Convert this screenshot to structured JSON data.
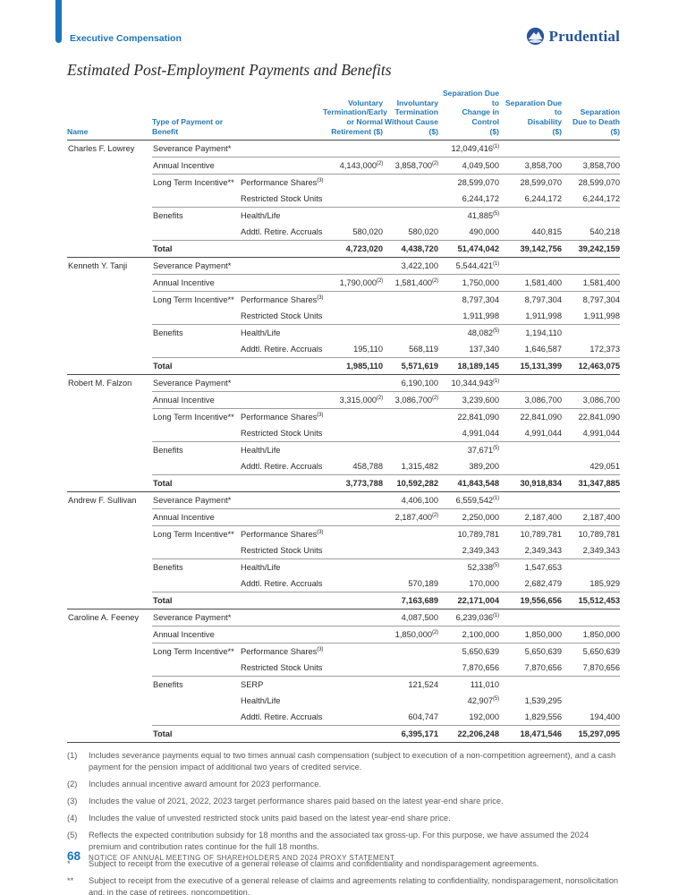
{
  "page": {
    "eyebrow": "Executive Compensation",
    "brand": "Prudential",
    "title": "Estimated Post-Employment Payments and Benefits",
    "footer": {
      "page_number": "68",
      "text": "NOTICE OF ANNUAL MEETING OF SHAREHOLDERS AND 2024 PROXY STATEMENT"
    }
  },
  "colors": {
    "accent_blue": "#1b75bc",
    "header_blue": "#2579b8",
    "brand_navy": "#27549d",
    "rule_light": "#9e9e9e",
    "rule_dark": "#4a4a4a",
    "text_dark": "#2b2b2b",
    "text_gray": "#58595b"
  },
  "icons": [
    {
      "name": "prudential-rock-logo",
      "glyph": "circle-with-rock"
    }
  ],
  "table": {
    "headers": [
      {
        "label": "Name",
        "align": "left"
      },
      {
        "label": "Type of Payment or Benefit",
        "align": "left"
      },
      {
        "label": "",
        "align": "left"
      },
      {
        "label": "Voluntary\nTermination/Early\nor Normal\nRetirement ($)",
        "align": "right"
      },
      {
        "label": "Involuntary\nTermination\nWithout Cause\n($)",
        "align": "right"
      },
      {
        "label": "Separation Due to\nChange in\nControl\n($)",
        "align": "right"
      },
      {
        "label": "Separation Due to\nDisability\n($)",
        "align": "right"
      },
      {
        "label": "Separation\nDue to Death\n($)",
        "align": "right"
      }
    ],
    "blocks": [
      {
        "name": "Charles F. Lowrey",
        "rows": [
          {
            "type": "Severance Payment*",
            "sub": "",
            "values": [
              "",
              "",
              "12,049,416^(1)",
              "",
              ""
            ],
            "rule": false,
            "total": false
          },
          {
            "type": "Annual Incentive",
            "sub": "",
            "values": [
              "4,143,000^(2)",
              "3,858,700^(2)",
              "4,049,500",
              "3,858,700",
              "3,858,700"
            ],
            "rule": true,
            "total": false
          },
          {
            "type": "Long Term Incentive**",
            "sub": "Performance Shares^(3)",
            "values": [
              "",
              "",
              "28,599,070",
              "28,599,070",
              "28,599,070"
            ],
            "rule": true,
            "total": false
          },
          {
            "type": "",
            "sub": "Restricted Stock Units^(4)",
            "values": [
              "",
              "",
              "6,244,172",
              "6,244,172",
              "6,244,172"
            ],
            "rule": false,
            "total": false
          },
          {
            "type": "Benefits",
            "sub": "Health/Life",
            "values": [
              "",
              "",
              "41,885^(5)",
              "",
              ""
            ],
            "rule": true,
            "total": false
          },
          {
            "type": "",
            "sub": "Addtl. Retire. Accruals",
            "values": [
              "580,020",
              "580,020",
              "490,000",
              "440,815",
              "540,218"
            ],
            "rule": false,
            "total": false
          },
          {
            "type": "Total",
            "sub": "",
            "values": [
              "4,723,020",
              "4,438,720",
              "51,474,042",
              "39,142,756",
              "39,242,159"
            ],
            "rule": true,
            "total": true
          }
        ]
      },
      {
        "name": "Kenneth Y. Tanji",
        "rows": [
          {
            "type": "Severance Payment*",
            "sub": "",
            "values": [
              "",
              "3,422,100",
              "5,544,421^(1)",
              "",
              ""
            ],
            "rule": false,
            "total": false
          },
          {
            "type": "Annual Incentive",
            "sub": "",
            "values": [
              "1,790,000^(2)",
              "1,581,400^(2)",
              "1,750,000",
              "1,581,400",
              "1,581,400"
            ],
            "rule": true,
            "total": false
          },
          {
            "type": "Long Term Incentive**",
            "sub": "Performance Shares^(3)",
            "values": [
              "",
              "",
              "8,797,304",
              "8,797,304",
              "8,797,304"
            ],
            "rule": true,
            "total": false
          },
          {
            "type": "",
            "sub": "Restricted Stock Units^(4)",
            "values": [
              "",
              "",
              "1,911,998",
              "1,911,998",
              "1,911,998"
            ],
            "rule": false,
            "total": false
          },
          {
            "type": "Benefits",
            "sub": "Health/Life",
            "values": [
              "",
              "",
              "48,082^(5)",
              "1,194,110",
              ""
            ],
            "rule": true,
            "total": false
          },
          {
            "type": "",
            "sub": "Addtl. Retire. Accruals",
            "values": [
              "195,110",
              "568,119",
              "137,340",
              "1,646,587",
              "172,373"
            ],
            "rule": false,
            "total": false
          },
          {
            "type": "Total",
            "sub": "",
            "values": [
              "1,985,110",
              "5,571,619",
              "18,189,145",
              "15,131,399",
              "12,463,075"
            ],
            "rule": true,
            "total": true
          }
        ]
      },
      {
        "name": "Robert M. Falzon",
        "rows": [
          {
            "type": "Severance Payment*",
            "sub": "",
            "values": [
              "",
              "6,190,100",
              "10,344,943^(1)",
              "",
              ""
            ],
            "rule": false,
            "total": false
          },
          {
            "type": "Annual Incentive",
            "sub": "",
            "values": [
              "3,315,000^(2)",
              "3,086,700^(2)",
              "3,239,600",
              "3,086,700",
              "3,086,700"
            ],
            "rule": true,
            "total": false
          },
          {
            "type": "Long Term Incentive**",
            "sub": "Performance Shares^(3)",
            "values": [
              "",
              "",
              "22,841,090",
              "22,841,090",
              "22,841,090"
            ],
            "rule": true,
            "total": false
          },
          {
            "type": "",
            "sub": "Restricted Stock Units^(4)",
            "values": [
              "",
              "",
              "4,991,044",
              "4,991,044",
              "4,991,044"
            ],
            "rule": false,
            "total": false
          },
          {
            "type": "Benefits",
            "sub": "Health/Life",
            "values": [
              "",
              "",
              "37,671^(5)",
              "",
              ""
            ],
            "rule": true,
            "total": false
          },
          {
            "type": "",
            "sub": "Addtl. Retire. Accruals",
            "values": [
              "458,788",
              "1,315,482",
              "389,200",
              "",
              "429,051"
            ],
            "rule": false,
            "total": false
          },
          {
            "type": "Total",
            "sub": "",
            "values": [
              "3,773,788",
              "10,592,282",
              "41,843,548",
              "30,918,834",
              "31,347,885"
            ],
            "rule": true,
            "total": true
          }
        ]
      },
      {
        "name": "Andrew F. Sullivan",
        "rows": [
          {
            "type": "Severance Payment*",
            "sub": "",
            "values": [
              "",
              "4,406,100",
              "6,559,542^(1)",
              "",
              ""
            ],
            "rule": false,
            "total": false
          },
          {
            "type": "Annual Incentive",
            "sub": "",
            "values": [
              "",
              "2,187,400^(2)",
              "2,250,000",
              "2,187,400",
              "2,187,400"
            ],
            "rule": true,
            "total": false
          },
          {
            "type": "Long Term Incentive**",
            "sub": "Performance Shares^(3)",
            "values": [
              "",
              "",
              "10,789,781",
              "10,789,781",
              "10,789,781"
            ],
            "rule": true,
            "total": false
          },
          {
            "type": "",
            "sub": "Restricted Stock Units^(4)",
            "values": [
              "",
              "",
              "2,349,343",
              "2,349,343",
              "2,349,343"
            ],
            "rule": false,
            "total": false
          },
          {
            "type": "Benefits",
            "sub": "Health/Life",
            "values": [
              "",
              "",
              "52,338^(5)",
              "1,547,653",
              ""
            ],
            "rule": true,
            "total": false
          },
          {
            "type": "",
            "sub": "Addtl. Retire. Accruals",
            "values": [
              "",
              "570,189",
              "170,000",
              "2,682,479",
              "185,929"
            ],
            "rule": false,
            "total": false
          },
          {
            "type": "Total",
            "sub": "",
            "values": [
              "",
              "7,163,689",
              "22,171,004",
              "19,556,656",
              "15,512,453"
            ],
            "rule": true,
            "total": true
          }
        ]
      },
      {
        "name": "Caroline A. Feeney",
        "rows": [
          {
            "type": "Severance Payment*",
            "sub": "",
            "values": [
              "",
              "4,087,500",
              "6,239,036^(1)",
              "",
              ""
            ],
            "rule": false,
            "total": false
          },
          {
            "type": "Annual Incentive",
            "sub": "",
            "values": [
              "",
              "1,850,000^(2)",
              "2,100,000",
              "1,850,000",
              "1,850,000"
            ],
            "rule": true,
            "total": false
          },
          {
            "type": "Long Term Incentive**",
            "sub": "Performance Shares^(3)",
            "values": [
              "",
              "",
              "5,650,639",
              "5,650,639",
              "5,650,639"
            ],
            "rule": true,
            "total": false
          },
          {
            "type": "",
            "sub": "Restricted Stock Units^(4)",
            "values": [
              "",
              "",
              "7,870,656",
              "7,870,656",
              "7,870,656"
            ],
            "rule": false,
            "total": false
          },
          {
            "type": "Benefits",
            "sub": "SERP",
            "values": [
              "",
              "121,524",
              "111,010",
              "",
              ""
            ],
            "rule": true,
            "total": false
          },
          {
            "type": "",
            "sub": "Health/Life",
            "values": [
              "",
              "",
              "42,907^(5)",
              "1,539,295",
              ""
            ],
            "rule": false,
            "total": false
          },
          {
            "type": "",
            "sub": "Addtl. Retire. Accruals",
            "values": [
              "",
              "604,747",
              "192,000",
              "1,829,556",
              "194,400"
            ],
            "rule": false,
            "total": false
          },
          {
            "type": "Total",
            "sub": "",
            "values": [
              "",
              "6,395,171",
              "22,206,248",
              "18,471,546",
              "15,297,095"
            ],
            "rule": true,
            "total": true
          }
        ]
      }
    ]
  },
  "footnotes": [
    {
      "marker": "(1)",
      "text": "Includes severance payments equal to two times annual cash compensation (subject to execution of a non-competition agreement), and a cash payment for the pension impact of additional two years of credited service."
    },
    {
      "marker": "(2)",
      "text": "Includes annual incentive award amount for 2023 performance."
    },
    {
      "marker": "(3)",
      "text": "Includes the value of 2021, 2022, 2023 target performance shares paid based on the latest year-end share price."
    },
    {
      "marker": "(4)",
      "text": "Includes the value of unvested restricted stock units paid based on the latest year-end share price."
    },
    {
      "marker": "(5)",
      "text": "Reflects the expected contribution subsidy for 18 months and the associated tax gross-up. For this purpose, we have assumed the 2024 premium and contribution rates continue for the full 18 months."
    },
    {
      "marker": "*",
      "text": "Subject to receipt from the executive of a general release of claims and confidentiality and nondisparagement agreements."
    },
    {
      "marker": "**",
      "text": "Subject to receipt from the executive of a general release of claims and agreements relating to confidentiality, nondisparagement, nonsolicitation and, in the case of retirees, noncompetition."
    }
  ]
}
